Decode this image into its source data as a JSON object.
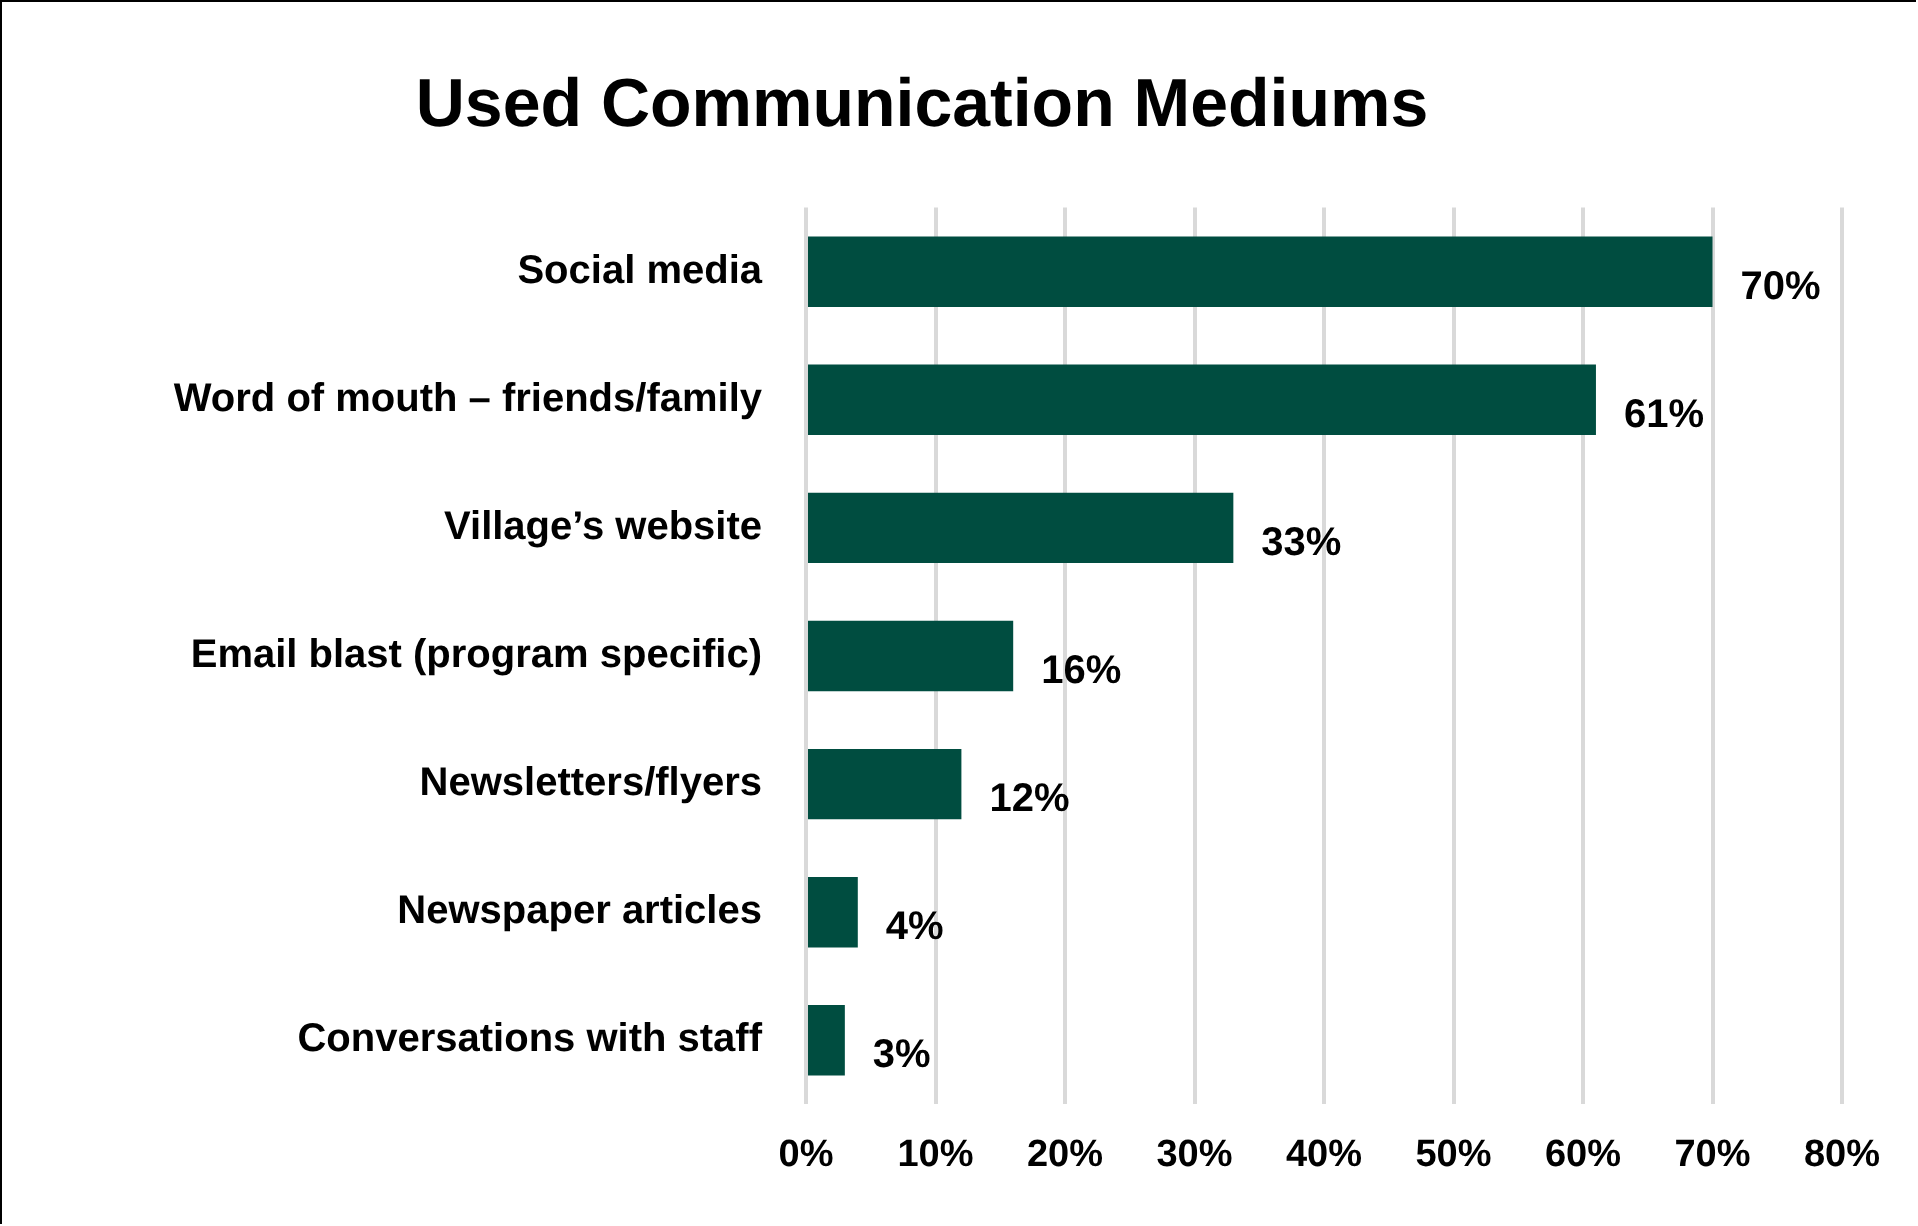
{
  "chart_data": {
    "type": "bar",
    "orientation": "horizontal",
    "title": "Used Communication Mediums",
    "categories": [
      "Social media",
      "Word of mouth – friends/family",
      "Village’s website",
      "Email blast (program specific)",
      "Newsletters/flyers",
      "Newspaper articles",
      "Conversations with staff"
    ],
    "values": [
      70,
      61,
      33,
      16,
      12,
      4,
      3
    ],
    "value_labels": [
      "70%",
      "61%",
      "33%",
      "16%",
      "12%",
      "4%",
      "3%"
    ],
    "color": "#004d40",
    "xlim": [
      0,
      80
    ],
    "xticks": [
      {
        "value": 0,
        "label": "0%"
      },
      {
        "value": 10,
        "label": "10%"
      },
      {
        "value": 20,
        "label": "20%"
      },
      {
        "value": 30,
        "label": "30%"
      },
      {
        "value": 40,
        "label": "40%"
      },
      {
        "value": 50,
        "label": "50%"
      },
      {
        "value": 60,
        "label": "60%"
      },
      {
        "value": 70,
        "label": "70%"
      },
      {
        "value": 80,
        "label": "80%"
      }
    ],
    "grid": "x",
    "legend": false
  }
}
